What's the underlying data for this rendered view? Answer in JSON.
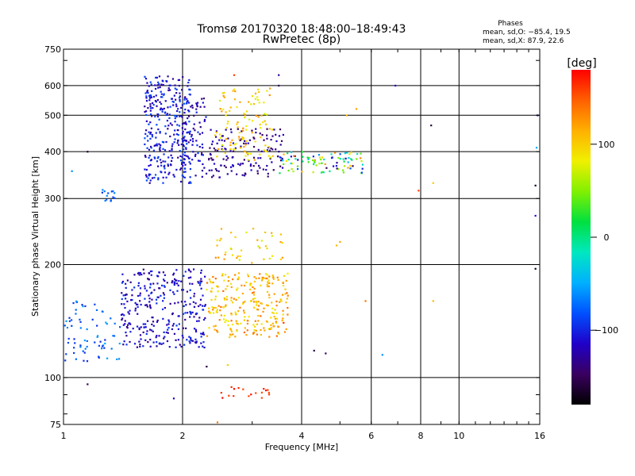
{
  "chart_data": {
    "type": "scatter",
    "title": "Tromsø 20170320 18:48:00–18:49:43",
    "subtitle": "RwPretec (8p)",
    "xlabel": "Frequency [MHz]",
    "ylabel": "Stationary phase Virtual Height [km]",
    "x_scale": "log",
    "y_scale": "log",
    "xlim": [
      1,
      16
    ],
    "ylim": [
      75,
      750
    ],
    "x_ticks": [
      1,
      2,
      4,
      6,
      8,
      10,
      16
    ],
    "y_ticks": [
      75,
      100,
      200,
      300,
      400,
      500,
      600,
      750
    ],
    "x_gridlines": [
      2,
      4,
      6,
      8,
      10
    ],
    "y_gridlines": [
      100,
      200,
      300,
      400,
      500,
      600
    ],
    "stats": {
      "header": "Phases",
      "o_line": "mean, sd,O: −85.4, 19.5",
      "x_line": "mean, sd,X:  87.9, 22.6"
    },
    "colorbar": {
      "label": "[deg]",
      "range": [
        -180,
        180
      ],
      "ticks": [
        100,
        0,
        -100
      ],
      "colormap": [
        "#000000",
        "#3a0060",
        "#2000c8",
        "#0050ff",
        "#00b0ff",
        "#00e8c0",
        "#00e040",
        "#80f000",
        "#f0f000",
        "#ffb000",
        "#ff6000",
        "#ff0000"
      ]
    },
    "clusters": [
      {
        "x": [
          1.0,
          1.4
        ],
        "y": [
          110,
          160
        ],
        "phase": [
          -100,
          -50
        ],
        "n": 70
      },
      {
        "x": [
          1.4,
          2.3
        ],
        "y": [
          120,
          195
        ],
        "phase": [
          -135,
          -90
        ],
        "n": 320
      },
      {
        "x": [
          2.3,
          3.7
        ],
        "y": [
          128,
          190
        ],
        "phase": [
          80,
          145
        ],
        "n": 260
      },
      {
        "x": [
          2.4,
          3.6
        ],
        "y": [
          200,
          250
        ],
        "phase": [
          70,
          130
        ],
        "n": 40
      },
      {
        "x": [
          1.6,
          2.1
        ],
        "y": [
          330,
          640
        ],
        "phase": [
          -130,
          -80
        ],
        "n": 330
      },
      {
        "x": [
          2.0,
          2.3
        ],
        "y": [
          340,
          560
        ],
        "phase": [
          -140,
          -90
        ],
        "n": 70
      },
      {
        "x": [
          2.3,
          3.6
        ],
        "y": [
          340,
          460
        ],
        "phase": [
          -150,
          -110
        ],
        "n": 140
      },
      {
        "x": [
          2.4,
          3.4
        ],
        "y": [
          380,
          590
        ],
        "phase": [
          70,
          130
        ],
        "n": 110
      },
      {
        "x": [
          3.5,
          5.8
        ],
        "y": [
          350,
          400
        ],
        "phase": [
          -150,
          140
        ],
        "n": 90
      },
      {
        "x": [
          2.5,
          3.5
        ],
        "y": [
          88,
          95
        ],
        "phase": [
          150,
          180
        ],
        "n": 18
      },
      {
        "x": [
          1.25,
          1.35
        ],
        "y": [
          295,
          320
        ],
        "phase": [
          -100,
          -60
        ],
        "n": 14
      }
    ],
    "points": [
      {
        "x": 1.15,
        "y": 96,
        "phase": -150
      },
      {
        "x": 1.15,
        "y": 400,
        "phase": -160
      },
      {
        "x": 1.05,
        "y": 355,
        "phase": -60
      },
      {
        "x": 1.9,
        "y": 88,
        "phase": -120
      },
      {
        "x": 6.9,
        "y": 600,
        "phase": -110
      },
      {
        "x": 8.5,
        "y": 470,
        "phase": -160
      },
      {
        "x": 7.9,
        "y": 315,
        "phase": 160
      },
      {
        "x": 8.6,
        "y": 330,
        "phase": 100
      },
      {
        "x": 8.6,
        "y": 160,
        "phase": 110
      },
      {
        "x": 6.4,
        "y": 115,
        "phase": -60
      },
      {
        "x": 4.3,
        "y": 118,
        "phase": -160
      },
      {
        "x": 4.6,
        "y": 116,
        "phase": -150
      },
      {
        "x": 15.6,
        "y": 325,
        "phase": -170
      },
      {
        "x": 15.6,
        "y": 270,
        "phase": -110
      },
      {
        "x": 15.6,
        "y": 195,
        "phase": -170
      },
      {
        "x": 15.8,
        "y": 500,
        "phase": -130
      },
      {
        "x": 15.7,
        "y": 410,
        "phase": -50
      },
      {
        "x": 3.5,
        "y": 640,
        "phase": -130
      },
      {
        "x": 3.5,
        "y": 600,
        "phase": -150
      },
      {
        "x": 2.7,
        "y": 640,
        "phase": 160
      },
      {
        "x": 2.45,
        "y": 76,
        "phase": 140
      },
      {
        "x": 2.6,
        "y": 108,
        "phase": 100
      },
      {
        "x": 2.3,
        "y": 107,
        "phase": -160
      },
      {
        "x": 5.5,
        "y": 520,
        "phase": 120
      },
      {
        "x": 5.2,
        "y": 500,
        "phase": 110
      },
      {
        "x": 5.0,
        "y": 230,
        "phase": 120
      },
      {
        "x": 4.9,
        "y": 225,
        "phase": 110
      },
      {
        "x": 5.8,
        "y": 160,
        "phase": 140
      },
      {
        "x": 3.6,
        "y": 140,
        "phase": 160
      }
    ]
  }
}
